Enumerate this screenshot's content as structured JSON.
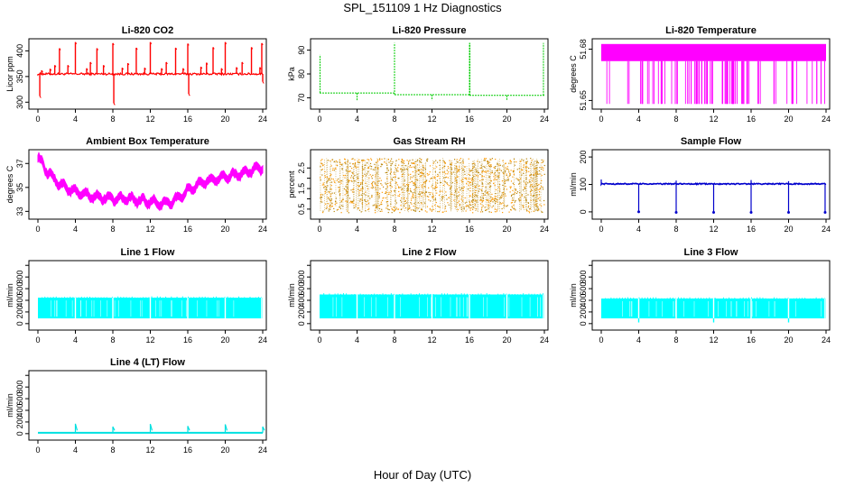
{
  "figure": {
    "title": "SPL_151109  1 Hz Diagnostics",
    "xlabel": "Hour of Day (UTC)"
  },
  "chart_data": [
    {
      "id": "co2",
      "type": "line",
      "title": "Li-820 CO2",
      "ylabel": "Licor ppm",
      "color": "#ff0000",
      "xlim": [
        0,
        24
      ],
      "ylim": [
        290,
        420
      ],
      "xticks": [
        0,
        4,
        8,
        12,
        16,
        20,
        24
      ],
      "yticks": [
        300,
        350,
        400
      ],
      "series": [
        {
          "name": "CO2",
          "baseline": 355,
          "noise": 4,
          "spikes": [
            [
              0.2,
              312
            ],
            [
              0.4,
              362
            ],
            [
              1.3,
              365
            ],
            [
              1.8,
              372
            ],
            [
              2.3,
              405
            ],
            [
              3.2,
              372
            ],
            [
              4.0,
              417
            ],
            [
              5.2,
              366
            ],
            [
              5.6,
              378
            ],
            [
              6.3,
              405
            ],
            [
              7.0,
              372
            ],
            [
              8.0,
              415
            ],
            [
              8.1,
              298
            ],
            [
              9.0,
              367
            ],
            [
              9.6,
              376
            ],
            [
              10.5,
              406
            ],
            [
              11.4,
              367
            ],
            [
              12.0,
              417
            ],
            [
              13.2,
              366
            ],
            [
              13.7,
              378
            ],
            [
              14.7,
              406
            ],
            [
              15.5,
              366
            ],
            [
              16.0,
              414
            ],
            [
              16.1,
              316
            ],
            [
              17.4,
              369
            ],
            [
              18.0,
              377
            ],
            [
              18.7,
              407
            ],
            [
              19.6,
              366
            ],
            [
              20.0,
              417
            ],
            [
              21.2,
              368
            ],
            [
              21.8,
              378
            ],
            [
              22.8,
              407
            ],
            [
              23.7,
              368
            ],
            [
              23.9,
              415
            ],
            [
              24.0,
              340
            ]
          ]
        }
      ]
    },
    {
      "id": "pressure",
      "type": "line",
      "title": "Li-820 Pressure",
      "ylabel": "kPa",
      "color": "#00cc00",
      "xlim": [
        0,
        24
      ],
      "ylim": [
        66,
        94
      ],
      "xticks": [
        0,
        4,
        8,
        12,
        16,
        20,
        24
      ],
      "yticks": [
        70,
        80,
        90
      ],
      "series": [
        {
          "name": "Pressure",
          "segments": [
            [
              0,
              72
            ],
            [
              8,
              71.3
            ],
            [
              16,
              71
            ],
            [
              24,
              70.6
            ]
          ],
          "spikes": [
            [
              0.05,
              88
            ],
            [
              4.0,
              69
            ],
            [
              8.0,
              93
            ],
            [
              12.0,
              69
            ],
            [
              16.0,
              93
            ],
            [
              16.05,
              93
            ],
            [
              20.0,
              69
            ],
            [
              23.9,
              93
            ]
          ]
        }
      ]
    },
    {
      "id": "licor_temp",
      "type": "line",
      "title": "Li-820 Temperature",
      "ylabel": "degrees C",
      "color": "#ff00ff",
      "xlim": [
        0,
        24
      ],
      "ylim": [
        51.646,
        51.685
      ],
      "xticks": [
        0,
        4,
        8,
        12,
        16,
        20,
        24
      ],
      "yticks": [
        51.65,
        51.68
      ],
      "ytick_labels": [
        "51.65",
        "51.68"
      ],
      "series": [
        {
          "name": "Temperature",
          "upper": 51.683,
          "lower": 51.673,
          "dip_to": 51.648
        }
      ]
    },
    {
      "id": "ambient_temp",
      "type": "line",
      "title": "Ambient Box Temperature",
      "ylabel": "degrees C",
      "color": "#ff00ff",
      "xlim": [
        0,
        24
      ],
      "ylim": [
        32.5,
        38
      ],
      "xticks": [
        0,
        4,
        8,
        12,
        16,
        20,
        24
      ],
      "yticks": [
        33,
        35,
        37
      ],
      "series": [
        {
          "name": "Ambient",
          "x": [
            0,
            1,
            2,
            3,
            4,
            6,
            8,
            10,
            12,
            13.5,
            14.5,
            15.5,
            16,
            18,
            20,
            22,
            24
          ],
          "values": [
            37.5,
            36.3,
            35.5,
            35.0,
            34.6,
            34.2,
            34.1,
            34.0,
            33.8,
            33.6,
            33.9,
            34.3,
            34.8,
            35.5,
            35.9,
            36.2,
            36.7
          ],
          "band": 0.6
        }
      ]
    },
    {
      "id": "rh",
      "type": "scatter",
      "title": "Gas Stream RH",
      "ylabel": "percent",
      "color": "#ff9900",
      "color2": "#b8860b",
      "xlim": [
        0,
        24
      ],
      "ylim": [
        0.1,
        3.3
      ],
      "xticks": [
        0,
        4,
        8,
        12,
        16,
        20,
        24
      ],
      "yticks": [
        0.5,
        1.5,
        2.5
      ],
      "yticks_minor": [
        1.0,
        2.0
      ],
      "ytick_labels": [
        "0.5",
        "1.5",
        "2.5"
      ],
      "series": [
        {
          "name": "RH",
          "center": 1.6,
          "range": [
            0.35,
            3.0
          ]
        }
      ]
    },
    {
      "id": "sample_flow",
      "type": "line",
      "title": "Sample Flow",
      "ylabel": "ml/min",
      "color": "#0000cc",
      "xlim": [
        0,
        24
      ],
      "ylim": [
        -20,
        220
      ],
      "xticks": [
        0,
        4,
        8,
        12,
        16,
        20,
        24
      ],
      "yticks": [
        0,
        100,
        200
      ],
      "series": [
        {
          "name": "Sample",
          "baseline": 102,
          "noise": 2,
          "dips": [
            [
              4.0,
              0
            ],
            [
              8.0,
              -2
            ],
            [
              12.0,
              -2
            ],
            [
              16.0,
              -2
            ],
            [
              20.0,
              -2
            ],
            [
              23.9,
              -2
            ]
          ],
          "bumps": [
            [
              0.0,
              118
            ],
            [
              8.0,
              114
            ],
            [
              16.0,
              116
            ],
            [
              20.0,
              112
            ]
          ]
        }
      ]
    },
    {
      "id": "line1",
      "type": "area",
      "title": "Line 1 Flow",
      "ylabel": "ml/min",
      "color": "#00ffff",
      "xlim": [
        0,
        24
      ],
      "ylim": [
        -80,
        1050
      ],
      "xticks": [
        0,
        4,
        8,
        12,
        16,
        20,
        24
      ],
      "yticks": [
        0,
        200,
        400,
        600,
        800
      ],
      "yticks_minor": [
        1000
      ],
      "series": [
        {
          "name": "Line 1",
          "upper": 445,
          "lower": 90,
          "gaps": [
            4.0,
            8.0,
            12.0,
            16.0,
            20.0,
            23.9
          ]
        }
      ]
    },
    {
      "id": "line2",
      "type": "area",
      "title": "Line 2 Flow",
      "ylabel": "ml/min",
      "color": "#00ffff",
      "xlim": [
        0,
        24
      ],
      "ylim": [
        -80,
        1050
      ],
      "xticks": [
        0,
        4,
        8,
        12,
        16,
        20,
        24
      ],
      "yticks": [
        0,
        200,
        400,
        600,
        800
      ],
      "yticks_minor": [
        1000
      ],
      "series": [
        {
          "name": "Line 2",
          "upper": 500,
          "lower": 90,
          "gaps": [
            4.0,
            8.0,
            12.0,
            16.0,
            20.0,
            23.9
          ]
        }
      ]
    },
    {
      "id": "line3",
      "type": "area",
      "title": "Line 3 Flow",
      "ylabel": "ml/min",
      "color": "#00ffff",
      "xlim": [
        0,
        24
      ],
      "ylim": [
        -80,
        1050
      ],
      "xticks": [
        0,
        4,
        8,
        12,
        16,
        20,
        24
      ],
      "yticks": [
        0,
        200,
        400,
        600,
        800
      ],
      "yticks_minor": [
        1000
      ],
      "series": [
        {
          "name": "Line 3",
          "upper": 430,
          "lower": 90,
          "gaps": [
            4.0,
            8.0,
            12.0,
            16.0,
            20.0,
            23.9
          ],
          "dips": [
            [
              4.0,
              20
            ],
            [
              12.0,
              20
            ],
            [
              20.0,
              20
            ]
          ]
        }
      ]
    },
    {
      "id": "line4",
      "type": "line",
      "title": "Line 4 (LT) Flow",
      "ylabel": "ml/min",
      "color": "#00e0e0",
      "xlim": [
        0,
        24
      ],
      "ylim": [
        -80,
        1050
      ],
      "xticks": [
        0,
        4,
        8,
        12,
        16,
        20,
        24
      ],
      "yticks": [
        0,
        200,
        400,
        600,
        800
      ],
      "yticks_minor": [
        1000
      ],
      "series": [
        {
          "name": "Line 4",
          "baseline": 15,
          "spikes": [
            [
              4.0,
              170
            ],
            [
              8.0,
              120
            ],
            [
              12.0,
              165
            ],
            [
              16.0,
              130
            ],
            [
              20.0,
              160
            ],
            [
              24.0,
              120
            ]
          ]
        }
      ]
    }
  ]
}
